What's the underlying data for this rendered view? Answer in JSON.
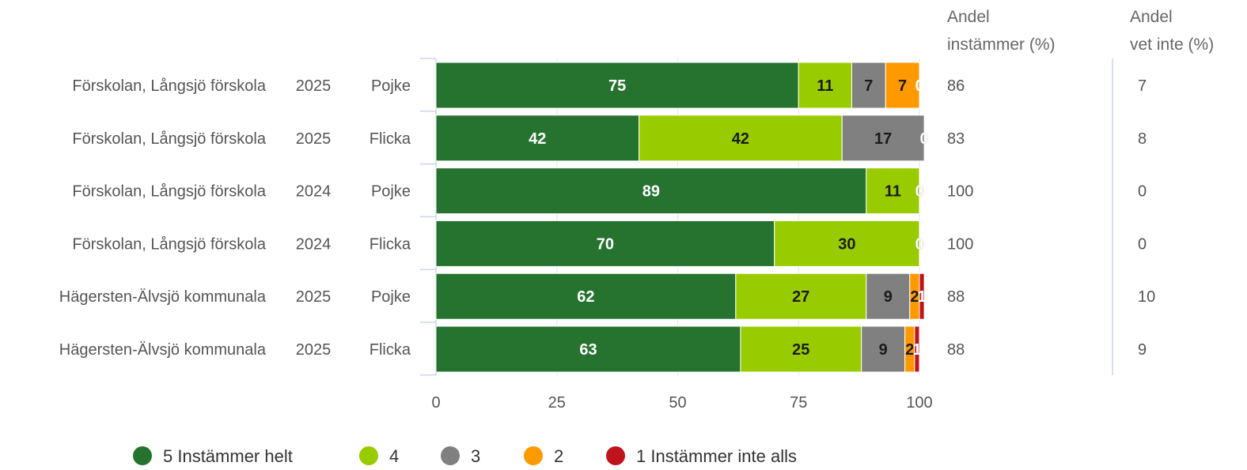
{
  "chart_data": {
    "type": "bar",
    "orientation": "horizontal",
    "stacked": true,
    "rows": [
      {
        "name": "Förskolan, Långsjö förskola",
        "year": "2025",
        "gender": "Pojke",
        "instammer": "86",
        "vet_inte": "7"
      },
      {
        "name": "Förskolan, Långsjö förskola",
        "year": "2025",
        "gender": "Flicka",
        "instammer": "83",
        "vet_inte": "8"
      },
      {
        "name": "Förskolan, Långsjö förskola",
        "year": "2024",
        "gender": "Pojke",
        "instammer": "100",
        "vet_inte": "0"
      },
      {
        "name": "Förskolan, Långsjö förskola",
        "year": "2024",
        "gender": "Flicka",
        "instammer": "100",
        "vet_inte": "0"
      },
      {
        "name": "Hägersten-Älvsjö kommunala",
        "year": "2025",
        "gender": "Pojke",
        "instammer": "88",
        "vet_inte": "10"
      },
      {
        "name": "Hägersten-Älvsjö kommunala",
        "year": "2025",
        "gender": "Flicka",
        "instammer": "88",
        "vet_inte": "9"
      }
    ],
    "series": [
      {
        "name": "5 Instämmer helt",
        "color": "#267330",
        "label_color": "#ffffff",
        "values": [
          75,
          42,
          89,
          70,
          62,
          63
        ]
      },
      {
        "name": "4",
        "color": "#99cc00",
        "label_color": "#1a1a1a",
        "values": [
          11,
          42,
          11,
          30,
          27,
          25
        ]
      },
      {
        "name": "3",
        "color": "#808080",
        "label_color": "#1a1a1a",
        "values": [
          7,
          17,
          0,
          0,
          9,
          9
        ]
      },
      {
        "name": "2",
        "color": "#ff9900",
        "label_color": "#1a1a1a",
        "values": [
          7,
          0,
          0,
          0,
          2,
          2
        ]
      },
      {
        "name": "1 Instämmer inte alls",
        "color": "#c0141c",
        "label_color": "#ffffff",
        "values": [
          0,
          0,
          0,
          0,
          1,
          1
        ]
      }
    ],
    "xlim": [
      0,
      100
    ],
    "xticks": [
      "0",
      "25",
      "50",
      "75",
      "100"
    ],
    "side_columns": {
      "instammer_header": [
        "Andel",
        "instämmer (%)"
      ],
      "vet_inte_header": [
        "Andel",
        "vet inte (%)"
      ]
    },
    "legend_position": "bottom"
  }
}
